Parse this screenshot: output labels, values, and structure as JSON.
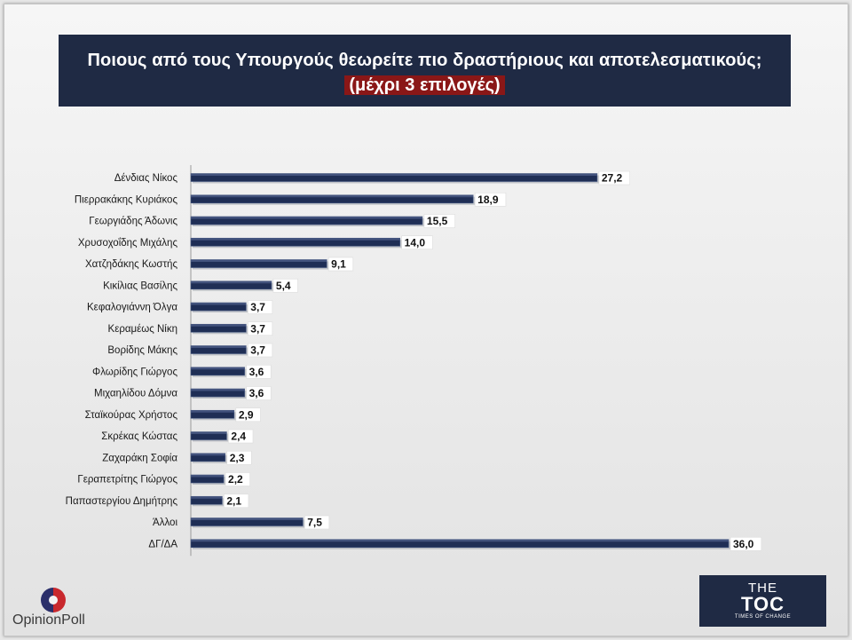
{
  "header": {
    "title_line1": "Ποιους από τους Υπουργούς θεωρείτε πιο δραστήριους και αποτελεσματικούς;",
    "title_line2": "(μέχρι 3 επιλογές)"
  },
  "chart_data": {
    "type": "bar",
    "orientation": "horizontal",
    "categories": [
      "Δένδιας Νίκος",
      "Πιερρακάκης Κυριάκος",
      "Γεωργιάδης Άδωνις",
      "Χρυσοχοΐδης Μιχάλης",
      "Χατζηδάκης Κωστής",
      "Κικίλιας Βασίλης",
      "Κεφαλογιάννη Όλγα",
      "Κεραμέως Νίκη",
      "Βορίδης Μάκης",
      "Φλωρίδης Γιώργος",
      "Μιχαηλίδου Δόμνα",
      "Σταϊκούρας Χρήστος",
      "Σκρέκας Κώστας",
      "Ζαχαράκη Σοφία",
      "Γεραπετρίτης Γιώργος",
      "Παπαστεργίου Δημήτρης",
      "Άλλοι",
      "ΔΓ/ΔΑ"
    ],
    "values": [
      27.2,
      18.9,
      15.5,
      14.0,
      9.1,
      5.4,
      3.7,
      3.7,
      3.7,
      3.6,
      3.6,
      2.9,
      2.4,
      2.3,
      2.2,
      2.1,
      7.5,
      36.0
    ],
    "value_labels": [
      "27,2",
      "18,9",
      "15,5",
      "14,0",
      "9,1",
      "5,4",
      "3,7",
      "3,7",
      "3,7",
      "3,6",
      "3,6",
      "2,9",
      "2,4",
      "2,3",
      "2,2",
      "2,1",
      "7,5",
      "36,0"
    ],
    "xlim": [
      0,
      36.0
    ],
    "grid": false,
    "colors": {
      "bar": "#1f2e55",
      "bar_edge": "#43557f"
    }
  },
  "logos": {
    "left_text": "OpinionPoll",
    "right_the": "THE",
    "right_main": "TOC",
    "right_sub": "TIMES OF CHANGE"
  }
}
